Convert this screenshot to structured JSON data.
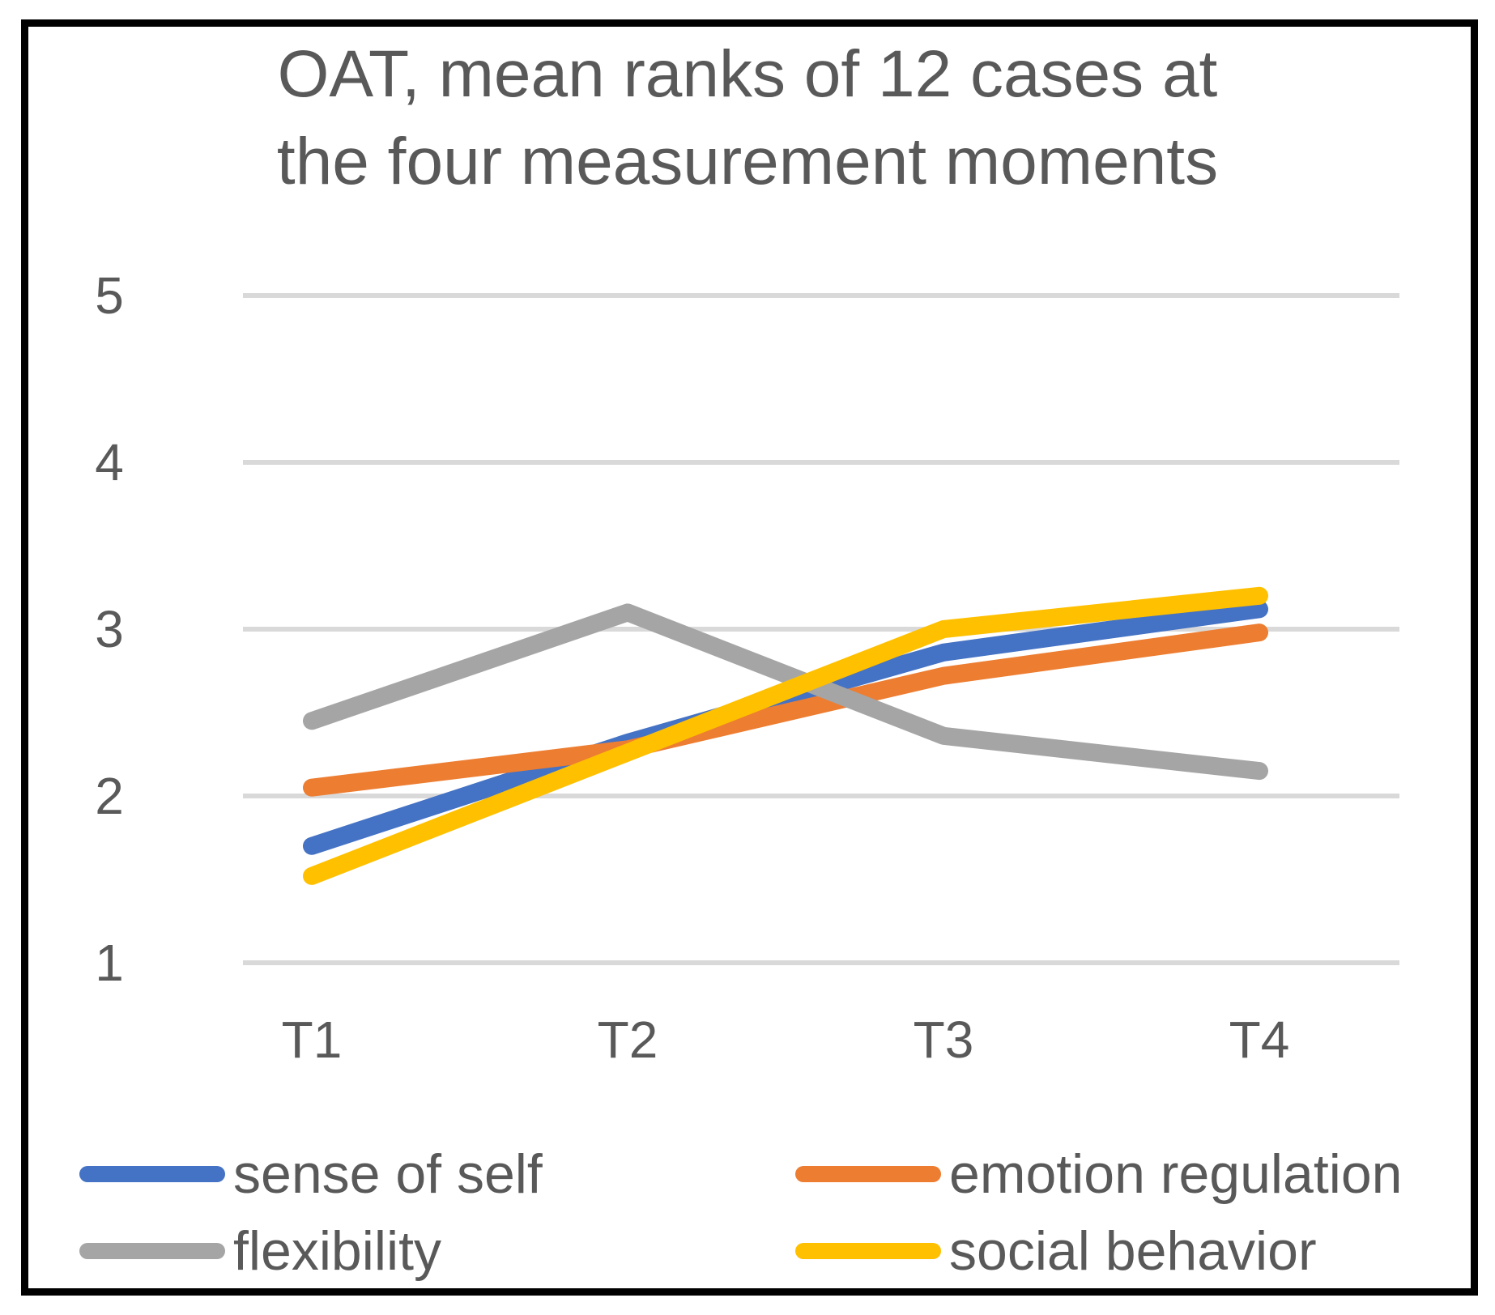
{
  "title": {
    "line1": "OAT, mean ranks of 12 cases at",
    "line2": "the four measurement moments"
  },
  "chart_data": {
    "type": "line",
    "title": "OAT, mean ranks of 12 cases at the four measurement moments",
    "categories": [
      "T1",
      "T2",
      "T3",
      "T4"
    ],
    "series": [
      {
        "name": "sense of self",
        "color": "#4472C4",
        "values": [
          1.7,
          2.32,
          2.86,
          3.12
        ]
      },
      {
        "name": "emotion regulation",
        "color": "#ED7D31",
        "values": [
          2.05,
          2.28,
          2.72,
          2.98
        ]
      },
      {
        "name": "flexibility",
        "color": "#A5A5A5",
        "values": [
          2.45,
          3.1,
          2.36,
          2.15
        ]
      },
      {
        "name": "social behavior",
        "color": "#FFC000",
        "values": [
          1.52,
          2.26,
          3.0,
          3.2
        ]
      }
    ],
    "xlabel": "",
    "ylabel": "",
    "ylim": [
      1,
      5
    ],
    "y_ticks": [
      1,
      2,
      3,
      4,
      5
    ],
    "grid": "horizontal",
    "legend_position": "bottom, two columns",
    "colors": {
      "gridline": "#D9D9D9",
      "text": "#595959",
      "frame_border": "#000000",
      "background": "#FFFFFF"
    }
  }
}
